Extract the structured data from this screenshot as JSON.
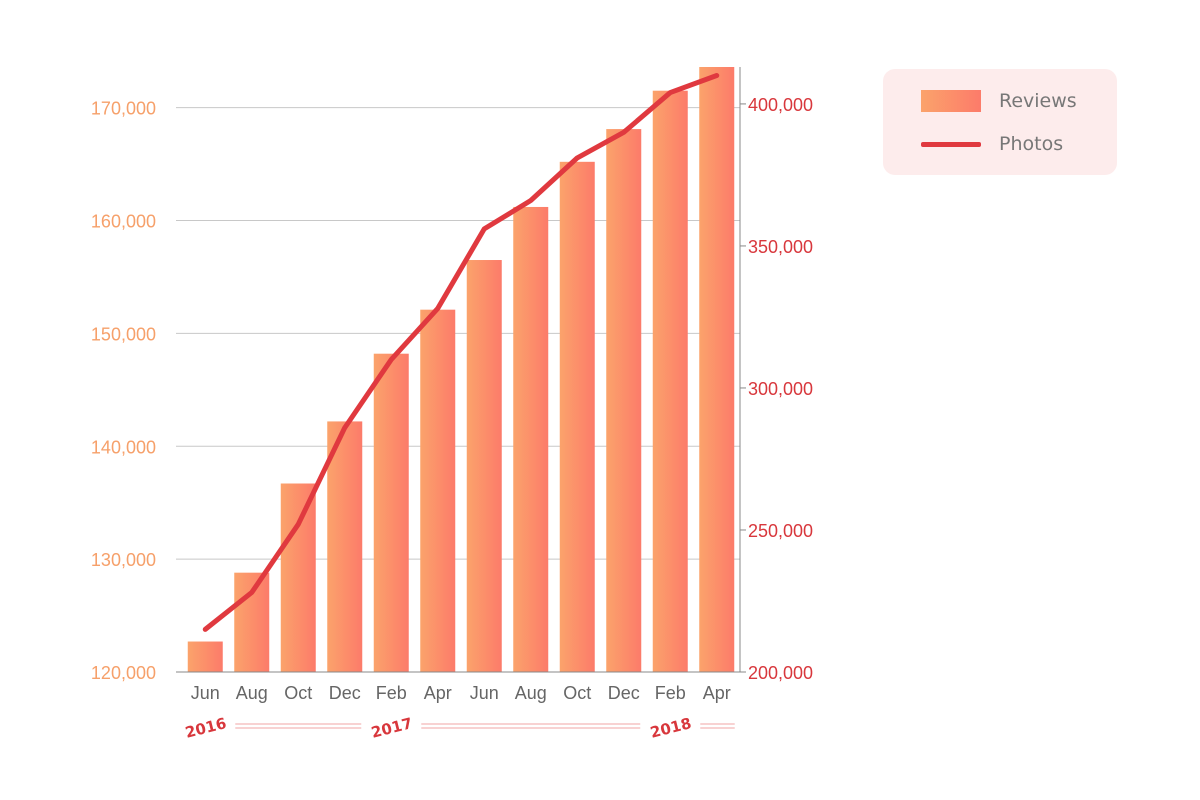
{
  "chart_data": {
    "type": "bar",
    "categories": [
      "Jun",
      "Aug",
      "Oct",
      "Dec",
      "Feb",
      "Apr",
      "Jun",
      "Aug",
      "Oct",
      "Dec",
      "Feb",
      "Apr"
    ],
    "years": [
      {
        "label": "2016",
        "start_index": 0
      },
      {
        "label": "2017",
        "start_index": 4
      },
      {
        "label": "2018",
        "start_index": 10
      }
    ],
    "series": [
      {
        "name": "Reviews",
        "chart": "bar",
        "axis": "left",
        "values": [
          122700,
          128800,
          136700,
          142200,
          148200,
          152100,
          156500,
          161200,
          165200,
          168100,
          171500,
          173600
        ]
      },
      {
        "name": "Photos",
        "chart": "line",
        "axis": "right",
        "values": [
          215000,
          228000,
          252000,
          286000,
          310000,
          328000,
          356000,
          366000,
          381000,
          390000,
          404000,
          410000
        ]
      }
    ],
    "left_axis": {
      "ylim": [
        120000,
        173600
      ],
      "ticks": [
        120000,
        130000,
        140000,
        150000,
        160000,
        170000
      ],
      "tick_labels": [
        "120,000",
        "130,000",
        "140,000",
        "150,000",
        "160,000",
        "170,000"
      ]
    },
    "right_axis": {
      "ylim": [
        200000,
        413000
      ],
      "ticks": [
        200000,
        250000,
        300000,
        350000,
        400000
      ],
      "tick_labels": [
        "200,000",
        "250,000",
        "300,000",
        "350,000",
        "400,000"
      ]
    },
    "grid": true,
    "legend_position": "top-right",
    "colors": {
      "bar_start": "#fba36b",
      "bar_end": "#fc7b6a",
      "line": "#e0393f",
      "left_axis_text": "#f6a06a",
      "right_axis_text": "#d8373c",
      "grid": "#c8c8c8"
    }
  },
  "legend": {
    "reviews_label": "Reviews",
    "photos_label": "Photos"
  }
}
